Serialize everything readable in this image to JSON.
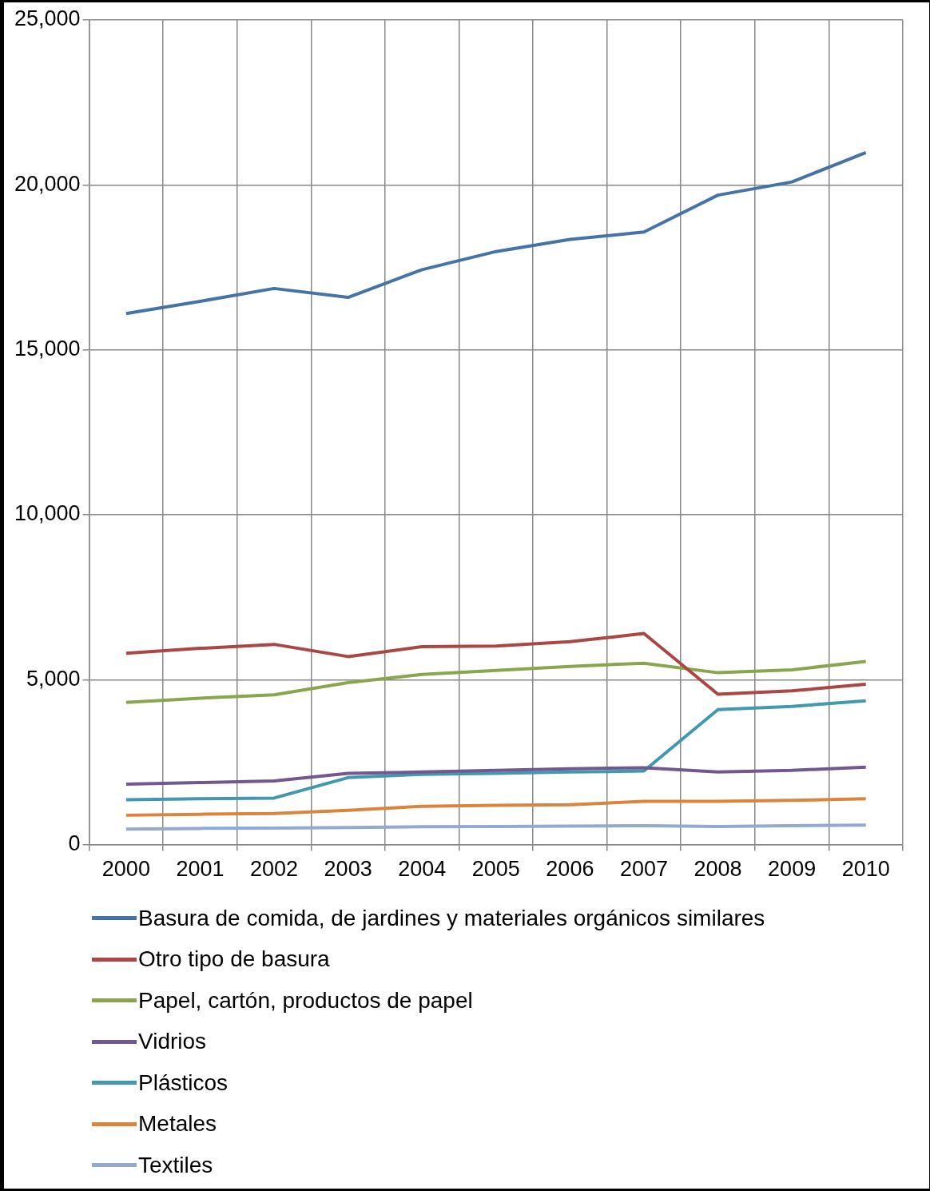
{
  "chart_data": {
    "type": "line",
    "categories": [
      "2000",
      "2001",
      "2002",
      "2003",
      "2004",
      "2005",
      "2006",
      "2007",
      "2008",
      "2009",
      "2010"
    ],
    "series": [
      {
        "name": "Basura de comida, de jardines y materiales orgánicos similares",
        "color": "#4572a7",
        "values": [
          16100,
          16470,
          16860,
          16590,
          17430,
          17980,
          18350,
          18570,
          19690,
          20090,
          20980
        ]
      },
      {
        "name": "Otro tipo de basura",
        "color": "#aa4643",
        "values": [
          5800,
          5950,
          6070,
          5700,
          6000,
          6020,
          6150,
          6400,
          4560,
          4660,
          4860
        ]
      },
      {
        "name": "Papel, cartón, productos de papel",
        "color": "#89a54e",
        "values": [
          4310,
          4440,
          4540,
          4910,
          5160,
          5280,
          5400,
          5500,
          5210,
          5300,
          5550
        ]
      },
      {
        "name": "Vidrios",
        "color": "#71588f",
        "values": [
          1830,
          1880,
          1930,
          2160,
          2200,
          2250,
          2300,
          2330,
          2200,
          2250,
          2350
        ]
      },
      {
        "name": "Plásticos",
        "color": "#4198af",
        "values": [
          1360,
          1390,
          1410,
          2030,
          2130,
          2160,
          2200,
          2230,
          4090,
          4190,
          4360
        ]
      },
      {
        "name": "Metales",
        "color": "#db843d",
        "values": [
          890,
          920,
          940,
          1040,
          1160,
          1190,
          1210,
          1310,
          1310,
          1340,
          1390
        ]
      },
      {
        "name": "Textiles",
        "color": "#93a9cf",
        "values": [
          470,
          490,
          500,
          520,
          540,
          550,
          560,
          570,
          550,
          570,
          590
        ]
      }
    ],
    "ylim": [
      0,
      25000
    ],
    "yticks": [
      0,
      {
        "value": 5000,
        "label": "5,000"
      },
      {
        "value": 10000,
        "label": "10,000"
      },
      {
        "value": 15000,
        "label": "15,000"
      },
      {
        "value": 20000,
        "label": "20,000"
      },
      {
        "value": 25000,
        "label": "25,000"
      }
    ],
    "grid": true,
    "legend": "bottom",
    "marker": "none",
    "line_style": "solid"
  }
}
